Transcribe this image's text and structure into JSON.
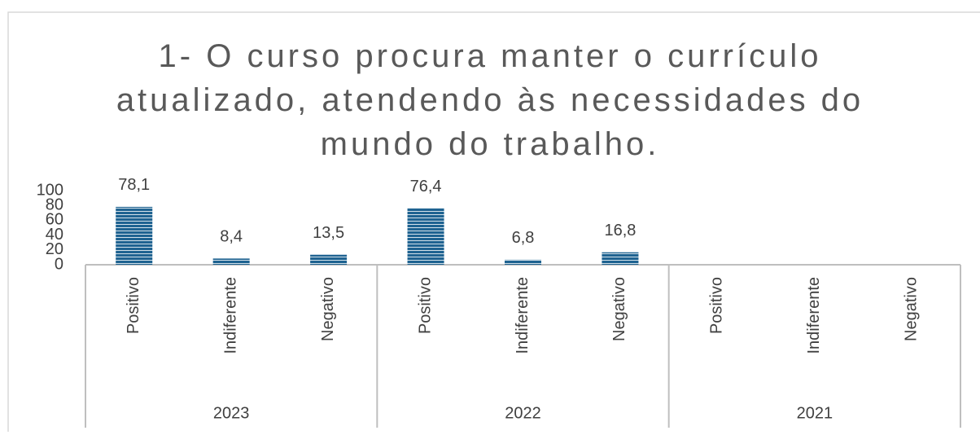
{
  "chart_data": {
    "type": "bar",
    "title": "1- O curso procura manter o currículo atualizado, atendendo às necessidades do mundo do trabalho.",
    "categories": [
      "Positivo",
      "Indiferente",
      "Negativo",
      "Positivo",
      "Indiferente",
      "Negativo",
      "Positivo",
      "Indiferente",
      "Negativo"
    ],
    "groups": [
      "2023",
      "2022",
      "2021"
    ],
    "values": [
      78.1,
      8.4,
      13.5,
      76.4,
      6.8,
      16.8,
      null,
      null,
      null
    ],
    "value_labels": [
      "78,1",
      "8,4",
      "13,5",
      "76,4",
      "6,8",
      "16,8",
      null,
      null,
      null
    ],
    "color": "#1f6391",
    "ylim": [
      0,
      100
    ],
    "yticks": [
      0,
      20,
      40,
      60,
      80,
      100
    ]
  }
}
